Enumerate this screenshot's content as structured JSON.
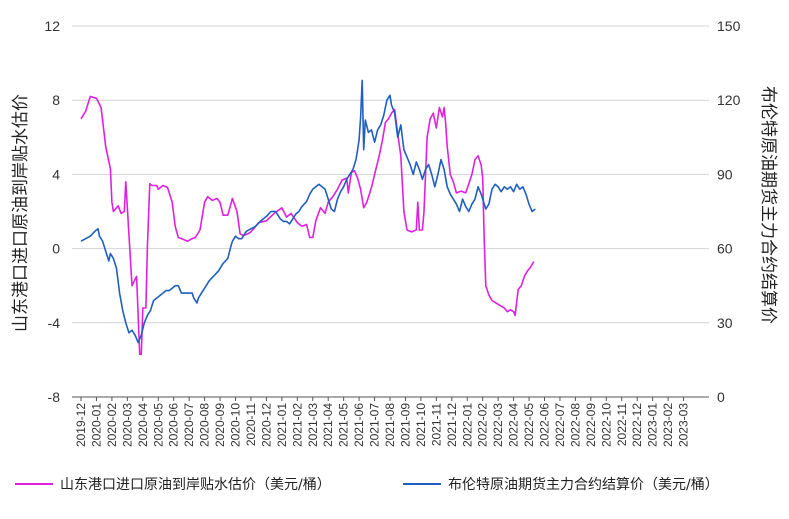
{
  "chart_data": {
    "type": "line",
    "left_axis": {
      "label": "山东港口进口原油到岸贴水估价",
      "ylim": [
        -8,
        12
      ],
      "ticks": [
        "-8",
        "-4",
        "0",
        "4",
        "8",
        "12"
      ]
    },
    "right_axis": {
      "label": "布伦特原油期货主力合约结算价",
      "ylim": [
        0,
        150
      ],
      "ticks": [
        "0",
        "30",
        "60",
        "90",
        "120",
        "150"
      ]
    },
    "x_ticks": [
      "2019-12",
      "2020-01",
      "2020-02",
      "2020-03",
      "2020-04",
      "2020-05",
      "2020-06",
      "2020-07",
      "2020-08",
      "2020-09",
      "2020-10",
      "2020-11",
      "2020-12",
      "2021-01",
      "2021-02",
      "2021-03",
      "2021-04",
      "2021-05",
      "2021-06",
      "2021-07",
      "2021-08",
      "2021-09",
      "2021-10",
      "2021-11",
      "2021-12",
      "2022-01",
      "2022-02",
      "2022-03",
      "2022-04",
      "2022-05",
      "2022-06",
      "2022-07",
      "2022-08",
      "2022-09",
      "2022-10",
      "2022-11",
      "2022-12",
      "2023-01",
      "2023-02",
      "2023-03"
    ],
    "grid": "horizontal",
    "legend_position": "bottom",
    "series": [
      {
        "name": "山东港口进口原油到岸贴水估价（美元/桶）",
        "axis": "left",
        "color": "#e020e0",
        "points": [
          [
            0,
            7
          ],
          [
            0.3,
            7.4
          ],
          [
            0.6,
            8.2
          ],
          [
            1.0,
            8.1
          ],
          [
            1.3,
            7.6
          ],
          [
            1.6,
            5.5
          ],
          [
            1.9,
            4.3
          ],
          [
            2.0,
            2.5
          ],
          [
            2.1,
            2.0
          ],
          [
            2.4,
            2.3
          ],
          [
            2.6,
            1.9
          ],
          [
            2.8,
            2.0
          ],
          [
            2.9,
            3.6
          ],
          [
            3.1,
            0.8
          ],
          [
            3.3,
            -2
          ],
          [
            3.6,
            -1.5
          ],
          [
            3.8,
            -5.7
          ],
          [
            3.9,
            -5.7
          ],
          [
            4.0,
            -3.2
          ],
          [
            4.2,
            -3.2
          ],
          [
            4.3,
            0.1
          ],
          [
            4.45,
            3.5
          ],
          [
            4.6,
            3.4
          ],
          [
            4.9,
            3.4
          ],
          [
            5.0,
            3.2
          ],
          [
            5.3,
            3.4
          ],
          [
            5.6,
            3.3
          ],
          [
            5.9,
            2.5
          ],
          [
            6.1,
            1.2
          ],
          [
            6.3,
            0.6
          ],
          [
            6.6,
            0.5
          ],
          [
            6.9,
            0.4
          ],
          [
            7.1,
            0.5
          ],
          [
            7.4,
            0.6
          ],
          [
            7.7,
            1.0
          ],
          [
            8.0,
            2.5
          ],
          [
            8.2,
            2.8
          ],
          [
            8.5,
            2.6
          ],
          [
            8.8,
            2.7
          ],
          [
            9.0,
            2.5
          ],
          [
            9.2,
            1.8
          ],
          [
            9.5,
            1.8
          ],
          [
            9.8,
            2.7
          ],
          [
            10.1,
            2.0
          ],
          [
            10.3,
            0.8
          ],
          [
            10.5,
            0.7
          ],
          [
            10.8,
            0.8
          ],
          [
            11.0,
            0.9
          ],
          [
            11.5,
            1.4
          ],
          [
            12.0,
            1.5
          ],
          [
            12.5,
            1.9
          ],
          [
            13.0,
            2.2
          ],
          [
            13.3,
            1.7
          ],
          [
            13.6,
            1.9
          ],
          [
            14.0,
            1.4
          ],
          [
            14.3,
            1.2
          ],
          [
            14.6,
            1.3
          ],
          [
            14.8,
            0.6
          ],
          [
            15.0,
            0.6
          ],
          [
            15.2,
            1.5
          ],
          [
            15.5,
            2.2
          ],
          [
            15.8,
            1.9
          ],
          [
            16.0,
            2.5
          ],
          [
            16.3,
            2.8
          ],
          [
            16.6,
            3.2
          ],
          [
            16.9,
            3.7
          ],
          [
            17.2,
            3.8
          ],
          [
            17.3,
            3.0
          ],
          [
            17.5,
            4.1
          ],
          [
            17.7,
            4.2
          ],
          [
            17.9,
            3.8
          ],
          [
            18.1,
            3.2
          ],
          [
            18.3,
            2.2
          ],
          [
            18.5,
            2.5
          ],
          [
            18.8,
            3.3
          ],
          [
            19.0,
            4.0
          ],
          [
            19.3,
            5.0
          ],
          [
            19.5,
            5.8
          ],
          [
            19.7,
            6.8
          ],
          [
            19.9,
            7.0
          ],
          [
            20.1,
            7.3
          ],
          [
            20.3,
            7.5
          ],
          [
            20.5,
            6.2
          ],
          [
            20.7,
            5.0
          ],
          [
            20.9,
            2.0
          ],
          [
            21.1,
            1.0
          ],
          [
            21.4,
            0.9
          ],
          [
            21.7,
            1.0
          ],
          [
            21.8,
            2.5
          ],
          [
            21.9,
            1.0
          ],
          [
            22.1,
            1.0
          ],
          [
            22.2,
            2.0
          ],
          [
            22.4,
            6.0
          ],
          [
            22.6,
            7.0
          ],
          [
            22.8,
            7.3
          ],
          [
            23.0,
            6.5
          ],
          [
            23.2,
            7.6
          ],
          [
            23.4,
            7.1
          ],
          [
            23.5,
            7.6
          ],
          [
            23.6,
            6.8
          ],
          [
            23.7,
            5.5
          ],
          [
            23.9,
            4.0
          ],
          [
            24.1,
            3.6
          ],
          [
            24.3,
            3.0
          ],
          [
            24.6,
            3.1
          ],
          [
            24.9,
            3.0
          ],
          [
            25.1,
            3.5
          ],
          [
            25.3,
            4.0
          ],
          [
            25.5,
            4.8
          ],
          [
            25.7,
            5.0
          ],
          [
            25.9,
            4.5
          ],
          [
            26.0,
            3.8
          ],
          [
            26.1,
            0.5
          ],
          [
            26.2,
            -2.0
          ],
          [
            26.4,
            -2.5
          ],
          [
            26.6,
            -2.8
          ],
          [
            26.8,
            -2.9
          ],
          [
            27.0,
            -3.0
          ],
          [
            27.2,
            -3.1
          ],
          [
            27.4,
            -3.2
          ],
          [
            27.6,
            -3.4
          ],
          [
            27.8,
            -3.3
          ],
          [
            28.0,
            -3.4
          ],
          [
            28.1,
            -3.6
          ],
          [
            28.3,
            -2.2
          ],
          [
            28.5,
            -2.0
          ],
          [
            28.7,
            -1.5
          ],
          [
            28.9,
            -1.2
          ],
          [
            29.1,
            -1.0
          ],
          [
            29.3,
            -0.7
          ]
        ]
      },
      {
        "name": "布伦特原油期货主力合约结算价（美元/桶）",
        "axis": "right",
        "color": "#1f5fbf",
        "points": [
          [
            0,
            63
          ],
          [
            0.3,
            64
          ],
          [
            0.6,
            65
          ],
          [
            0.9,
            67
          ],
          [
            1.1,
            68
          ],
          [
            1.2,
            65
          ],
          [
            1.4,
            63
          ],
          [
            1.6,
            59
          ],
          [
            1.8,
            55
          ],
          [
            1.9,
            58
          ],
          [
            2.1,
            56
          ],
          [
            2.3,
            52
          ],
          [
            2.5,
            42
          ],
          [
            2.7,
            35
          ],
          [
            2.9,
            30
          ],
          [
            3.1,
            26
          ],
          [
            3.3,
            27
          ],
          [
            3.5,
            25
          ],
          [
            3.7,
            22
          ],
          [
            3.9,
            25
          ],
          [
            4.1,
            30
          ],
          [
            4.3,
            33
          ],
          [
            4.5,
            35
          ],
          [
            4.7,
            39
          ],
          [
            4.9,
            40
          ],
          [
            5.1,
            41
          ],
          [
            5.3,
            42
          ],
          [
            5.5,
            43
          ],
          [
            5.7,
            43
          ],
          [
            5.9,
            44
          ],
          [
            6.1,
            45
          ],
          [
            6.3,
            45
          ],
          [
            6.5,
            42
          ],
          [
            6.8,
            42
          ],
          [
            7.0,
            42
          ],
          [
            7.2,
            42
          ],
          [
            7.3,
            40
          ],
          [
            7.5,
            38
          ],
          [
            7.6,
            40
          ],
          [
            7.8,
            42
          ],
          [
            8.0,
            44
          ],
          [
            8.3,
            47
          ],
          [
            8.6,
            49
          ],
          [
            8.9,
            51
          ],
          [
            9.2,
            54
          ],
          [
            9.5,
            56
          ],
          [
            9.7,
            61
          ],
          [
            9.8,
            63
          ],
          [
            10.0,
            65
          ],
          [
            10.2,
            64
          ],
          [
            10.4,
            64
          ],
          [
            10.7,
            67
          ],
          [
            11.0,
            68
          ],
          [
            11.3,
            69
          ],
          [
            11.6,
            71
          ],
          [
            12.0,
            73
          ],
          [
            12.3,
            75
          ],
          [
            12.6,
            75
          ],
          [
            12.9,
            72
          ],
          [
            13.1,
            71
          ],
          [
            13.3,
            71
          ],
          [
            13.5,
            70
          ],
          [
            13.7,
            72
          ],
          [
            13.9,
            74
          ],
          [
            14.1,
            75
          ],
          [
            14.3,
            77
          ],
          [
            14.6,
            79
          ],
          [
            14.8,
            82
          ],
          [
            15.0,
            84
          ],
          [
            15.2,
            85
          ],
          [
            15.4,
            86
          ],
          [
            15.6,
            85
          ],
          [
            15.8,
            84
          ],
          [
            16.0,
            80
          ],
          [
            16.2,
            76
          ],
          [
            16.4,
            75
          ],
          [
            16.6,
            80
          ],
          [
            16.8,
            83
          ],
          [
            17.0,
            85
          ],
          [
            17.2,
            88
          ],
          [
            17.4,
            90
          ],
          [
            17.6,
            92
          ],
          [
            17.8,
            96
          ],
          [
            17.9,
            100
          ],
          [
            18.0,
            104
          ],
          [
            18.1,
            113
          ],
          [
            18.2,
            128
          ],
          [
            18.3,
            100
          ],
          [
            18.4,
            112
          ],
          [
            18.6,
            107
          ],
          [
            18.8,
            108
          ],
          [
            19.0,
            103
          ],
          [
            19.2,
            108
          ],
          [
            19.4,
            110
          ],
          [
            19.6,
            114
          ],
          [
            19.8,
            120
          ],
          [
            20.0,
            122
          ],
          [
            20.1,
            118
          ],
          [
            20.3,
            115
          ],
          [
            20.5,
            105
          ],
          [
            20.7,
            110
          ],
          [
            20.9,
            100
          ],
          [
            21.1,
            97
          ],
          [
            21.3,
            94
          ],
          [
            21.5,
            90
          ],
          [
            21.7,
            95
          ],
          [
            21.9,
            92
          ],
          [
            22.1,
            88
          ],
          [
            22.3,
            92
          ],
          [
            22.5,
            94
          ],
          [
            22.7,
            90
          ],
          [
            22.9,
            85
          ],
          [
            23.1,
            90
          ],
          [
            23.3,
            96
          ],
          [
            23.5,
            92
          ],
          [
            23.7,
            85
          ],
          [
            23.9,
            82
          ],
          [
            24.1,
            80
          ],
          [
            24.3,
            78
          ],
          [
            24.5,
            75
          ],
          [
            24.7,
            80
          ],
          [
            24.9,
            77
          ],
          [
            25.1,
            75
          ],
          [
            25.3,
            78
          ],
          [
            25.5,
            80
          ],
          [
            25.7,
            85
          ],
          [
            25.9,
            82
          ],
          [
            26.0,
            80
          ],
          [
            26.2,
            76
          ],
          [
            26.4,
            78
          ],
          [
            26.6,
            84
          ],
          [
            26.8,
            86
          ],
          [
            27.0,
            85
          ],
          [
            27.2,
            83
          ],
          [
            27.4,
            85
          ],
          [
            27.6,
            84
          ],
          [
            27.8,
            85
          ],
          [
            28.0,
            83
          ],
          [
            28.2,
            86
          ],
          [
            28.4,
            84
          ],
          [
            28.6,
            85
          ],
          [
            28.8,
            82
          ],
          [
            29.0,
            78
          ],
          [
            29.2,
            75
          ],
          [
            29.4,
            76
          ]
        ]
      }
    ]
  },
  "legend": {
    "items": [
      {
        "label": "山东港口进口原油到岸贴水估价（美元/桶）",
        "color": "#e020e0"
      },
      {
        "label": "布伦特原油期货主力合约结算价（美元/桶）",
        "color": "#1f5fbf"
      }
    ]
  }
}
